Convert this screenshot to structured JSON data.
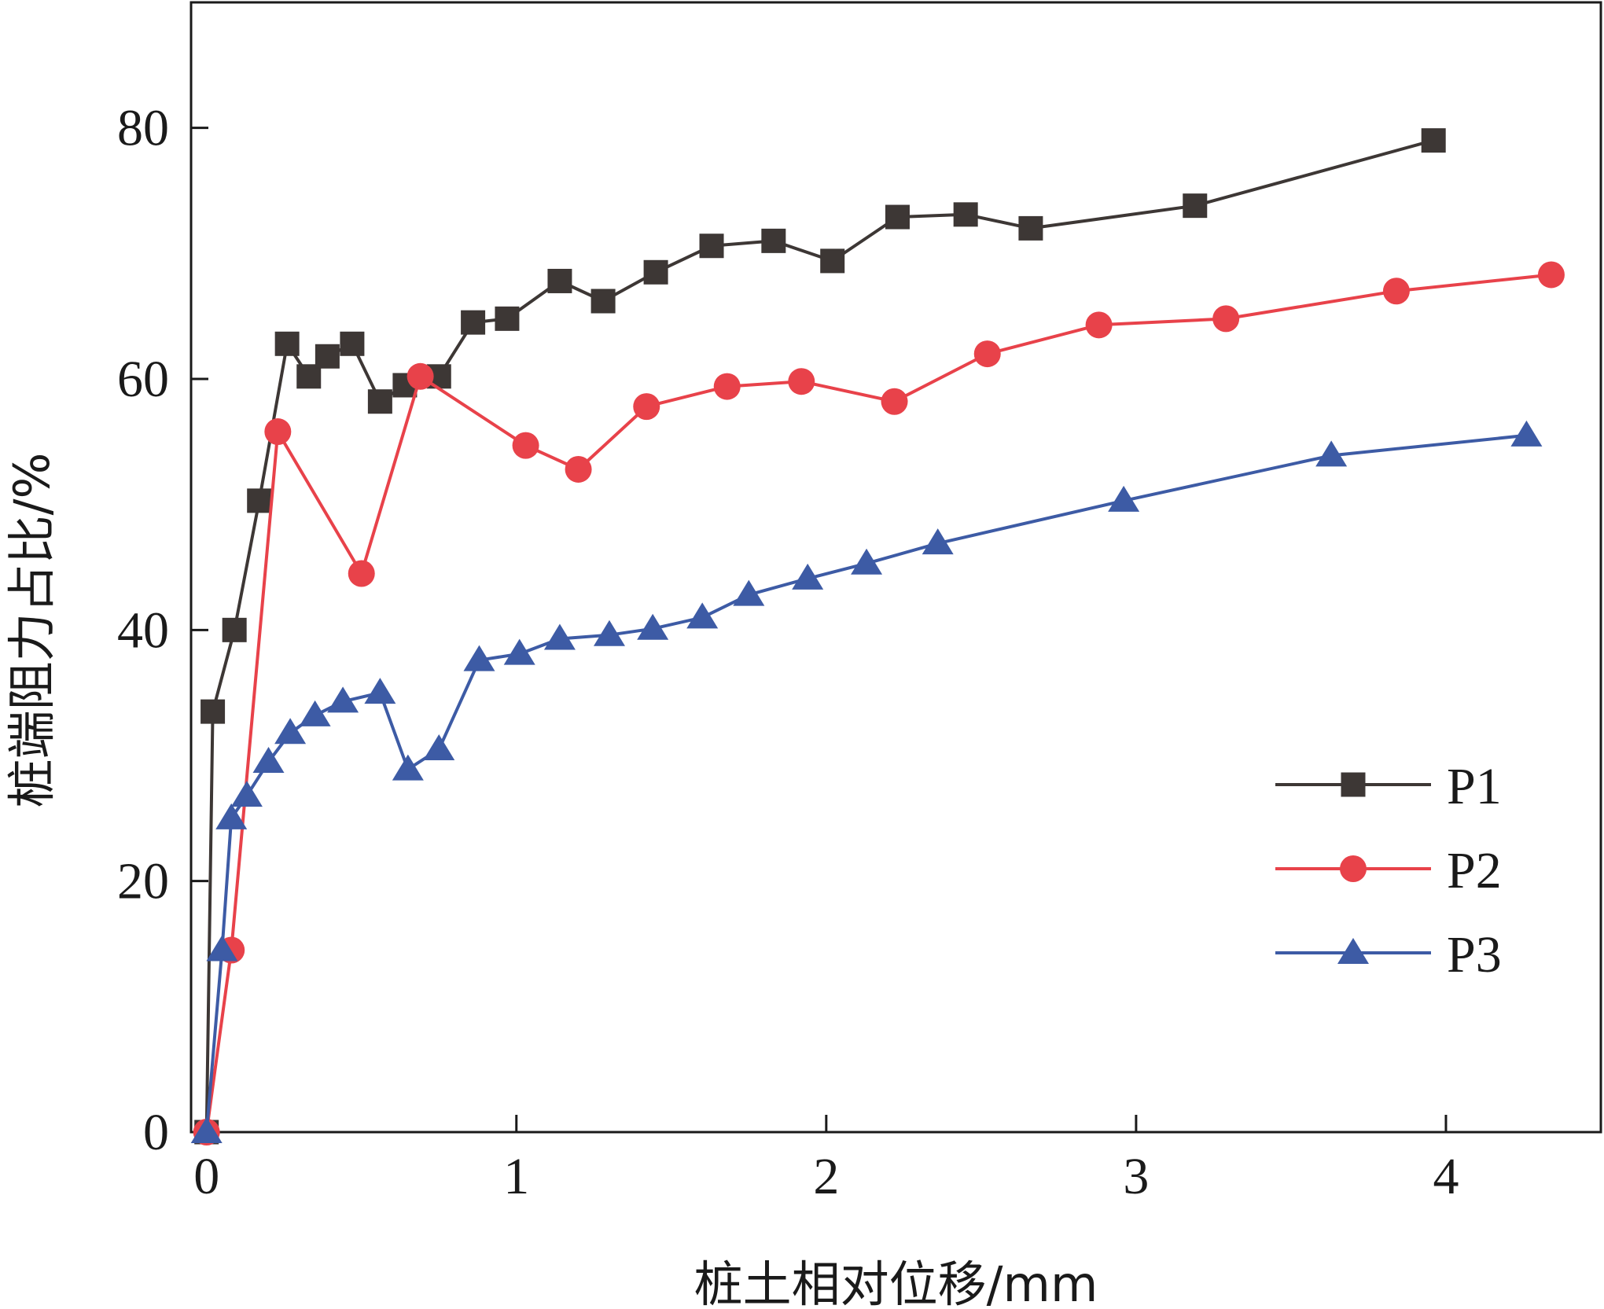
{
  "chart_data": {
    "type": "line",
    "title": "",
    "xlabel": "桩土相对位移/mm",
    "ylabel": "桩端阻力占比/%",
    "xlim": [
      -0.05,
      4.5
    ],
    "ylim": [
      0,
      90
    ],
    "xticks": [
      0,
      1,
      2,
      3,
      4
    ],
    "yticks": [
      0,
      20,
      40,
      60,
      80
    ],
    "x_tick_labels": [
      "0",
      "1",
      "2",
      "3",
      "4"
    ],
    "y_tick_labels": [
      "0",
      "20",
      "40",
      "60",
      "80"
    ],
    "grid": false,
    "legend_position": "lower-right",
    "series": [
      {
        "name": "P1",
        "color": "#3d3735",
        "marker": "square",
        "points": [
          [
            0,
            0
          ],
          [
            0.02,
            33.5
          ],
          [
            0.09,
            40
          ],
          [
            0.17,
            50.3
          ],
          [
            0.26,
            62.8
          ],
          [
            0.33,
            60.2
          ],
          [
            0.39,
            61.8
          ],
          [
            0.47,
            62.8
          ],
          [
            0.56,
            58.2
          ],
          [
            0.64,
            59.5
          ],
          [
            0.75,
            60.2
          ],
          [
            0.86,
            64.5
          ],
          [
            0.97,
            64.8
          ],
          [
            1.14,
            67.8
          ],
          [
            1.28,
            66.2
          ],
          [
            1.45,
            68.5
          ],
          [
            1.63,
            70.6
          ],
          [
            1.83,
            71
          ],
          [
            2.02,
            69.4
          ],
          [
            2.23,
            72.9
          ],
          [
            2.45,
            73.1
          ],
          [
            2.66,
            72
          ],
          [
            3.19,
            73.8
          ],
          [
            3.96,
            79
          ]
        ]
      },
      {
        "name": "P2",
        "color": "#e8424a",
        "marker": "circle",
        "points": [
          [
            0,
            0
          ],
          [
            0.08,
            14.5
          ],
          [
            0.23,
            55.8
          ],
          [
            0.5,
            44.5
          ],
          [
            0.69,
            60.2
          ],
          [
            1.03,
            54.7
          ],
          [
            1.2,
            52.8
          ],
          [
            1.42,
            57.8
          ],
          [
            1.68,
            59.4
          ],
          [
            1.92,
            59.8
          ],
          [
            2.22,
            58.2
          ],
          [
            2.52,
            62
          ],
          [
            2.88,
            64.3
          ],
          [
            3.29,
            64.8
          ],
          [
            3.84,
            67
          ],
          [
            4.34,
            68.3
          ]
        ]
      },
      {
        "name": "P3",
        "color": "#3d5ba5",
        "marker": "triangle",
        "points": [
          [
            0,
            0
          ],
          [
            0.05,
            14.5
          ],
          [
            0.08,
            25
          ],
          [
            0.13,
            26.8
          ],
          [
            0.2,
            29.5
          ],
          [
            0.27,
            31.8
          ],
          [
            0.35,
            33.2
          ],
          [
            0.44,
            34.3
          ],
          [
            0.56,
            35
          ],
          [
            0.65,
            28.9
          ],
          [
            0.75,
            30.5
          ],
          [
            0.88,
            37.6
          ],
          [
            1.01,
            38.1
          ],
          [
            1.14,
            39.3
          ],
          [
            1.3,
            39.6
          ],
          [
            1.44,
            40.1
          ],
          [
            1.6,
            41
          ],
          [
            1.75,
            42.8
          ],
          [
            1.94,
            44.1
          ],
          [
            2.13,
            45.3
          ],
          [
            2.36,
            46.9
          ],
          [
            2.96,
            50.3
          ],
          [
            3.63,
            53.9
          ],
          [
            4.26,
            55.5
          ]
        ]
      }
    ]
  }
}
